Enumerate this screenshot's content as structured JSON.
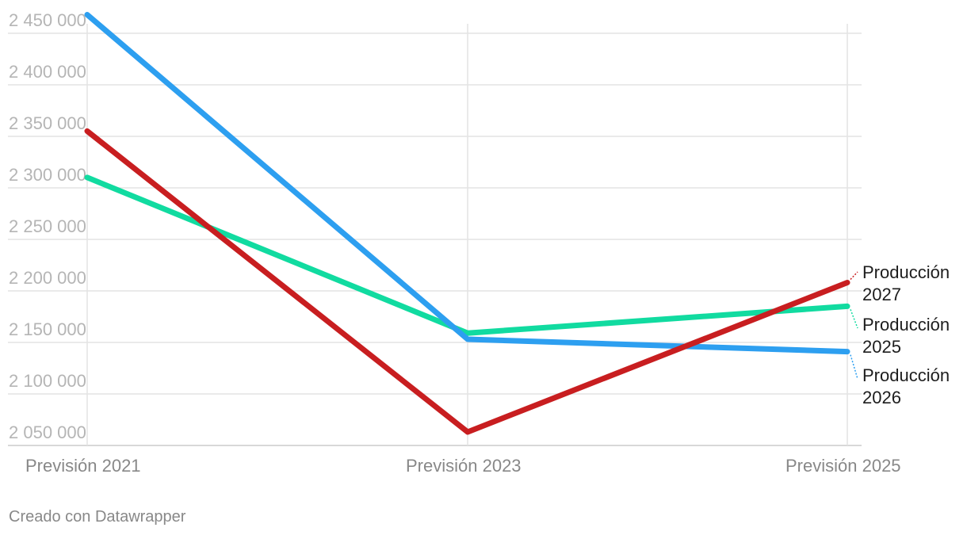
{
  "chart_data": {
    "type": "line",
    "x": [
      "Previsión 2021",
      "Previsión 2023",
      "Previsión 2025"
    ],
    "ylim": [
      2040000,
      2460000
    ],
    "yticks": [
      2050000,
      2100000,
      2150000,
      2200000,
      2250000,
      2300000,
      2350000,
      2400000,
      2450000
    ],
    "ytick_labels": [
      "2 050 000",
      "2 100 000",
      "2 150 000",
      "2 200 000",
      "2 250 000",
      "2 300 000",
      "2 350 000",
      "2 400 000",
      "2 450 000"
    ],
    "grid": true,
    "series": [
      {
        "id": "s2025",
        "name": "Producción 2025",
        "color": "#11dba0",
        "values": [
          2297000,
          2146000,
          2172000
        ]
      },
      {
        "id": "s2026",
        "name": "Producción 2026",
        "color": "#2d9ff0",
        "values": [
          2455000,
          2140000,
          2128000
        ]
      },
      {
        "id": "s2027",
        "name": "Producción 2027",
        "color": "#c81e20",
        "values": [
          2342000,
          2050000,
          2195000
        ]
      }
    ],
    "end_labels": [
      {
        "series": "s2027",
        "line1": "Producción",
        "line2": "2027"
      },
      {
        "series": "s2025",
        "line1": "Producción",
        "line2": "2025"
      },
      {
        "series": "s2026",
        "line1": "Producción",
        "line2": "2026"
      }
    ]
  },
  "footer": {
    "credit": "Creado con Datawrapper"
  }
}
